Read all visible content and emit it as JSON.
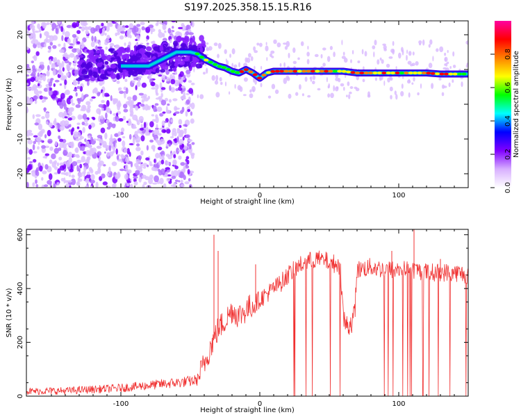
{
  "title": "S197.2025.358.15.15.R16",
  "chart_data": [
    {
      "type": "heatmap",
      "name": "spectrogram",
      "xlabel": "Height of straight line (km)",
      "ylabel": "Frequency (Hz)",
      "xlim": [
        -168,
        150
      ],
      "ylim": [
        -24,
        24
      ],
      "x_ticks": [
        -100,
        0,
        100
      ],
      "y_ticks": [
        20,
        10,
        0,
        -10,
        -20
      ],
      "ridge": {
        "x": [
          -100,
          -80,
          -60,
          -50,
          -45,
          -40,
          -35,
          -30,
          -25,
          -20,
          -15,
          -10,
          -5,
          0,
          5,
          10,
          20,
          30,
          40,
          50,
          60,
          70,
          80,
          90,
          100,
          110,
          120,
          130,
          140,
          150
        ],
        "y": [
          11,
          11,
          15,
          15,
          14.5,
          13,
          12,
          11,
          10.5,
          9.5,
          9,
          10,
          9,
          7.5,
          9,
          9.5,
          9.5,
          9.5,
          9.5,
          9.5,
          9.5,
          9,
          9,
          9,
          9,
          9,
          9,
          8.7,
          8.7,
          8.7
        ]
      },
      "colorbar": {
        "label": "Normalized spectral amplitude",
        "range": [
          0,
          1
        ],
        "ticks": [
          "0.0",
          "0.2",
          "0.4",
          "0.6",
          "0.8"
        ],
        "colors": [
          "#ffffff",
          "#d8b0ff",
          "#8000ff",
          "#0000ff",
          "#00ffff",
          "#00ff00",
          "#ffff00",
          "#ff8000",
          "#ff0000",
          "#ff00a0"
        ]
      }
    },
    {
      "type": "line",
      "name": "snr",
      "xlabel": "Height of straight line (km)",
      "ylabel": "SNR (10 * v/v)",
      "xlim": [
        -168,
        150
      ],
      "ylim": [
        0,
        620
      ],
      "x_ticks": [
        -100,
        0,
        100
      ],
      "y_ticks": [
        0,
        200,
        400,
        600
      ],
      "color": "#f03030",
      "series": [
        {
          "name": "SNR",
          "x": [
            -168,
            -140,
            -120,
            -100,
            -90,
            -80,
            -70,
            -60,
            -50,
            -45,
            -40,
            -35,
            -30,
            -25,
            -20,
            -15,
            -10,
            -5,
            0,
            5,
            10,
            15,
            20,
            25,
            30,
            40,
            50,
            55,
            58,
            60,
            62,
            65,
            68,
            70,
            80,
            90,
            100,
            110,
            120,
            130,
            140,
            150
          ],
          "y": [
            18,
            20,
            25,
            30,
            35,
            40,
            45,
            50,
            55,
            60,
            120,
            190,
            250,
            280,
            320,
            300,
            320,
            340,
            360,
            380,
            400,
            420,
            450,
            470,
            490,
            510,
            500,
            490,
            480,
            300,
            260,
            270,
            290,
            470,
            480,
            470,
            470,
            470,
            460,
            460,
            460,
            450
          ]
        }
      ],
      "spikes_up": [
        {
          "x": -33,
          "y": 600
        },
        {
          "x": -30,
          "y": 540
        },
        {
          "x": -3,
          "y": 490
        },
        {
          "x": 95,
          "y": 540
        },
        {
          "x": 111,
          "y": 625
        },
        {
          "x": 130,
          "y": 510
        }
      ]
    }
  ]
}
